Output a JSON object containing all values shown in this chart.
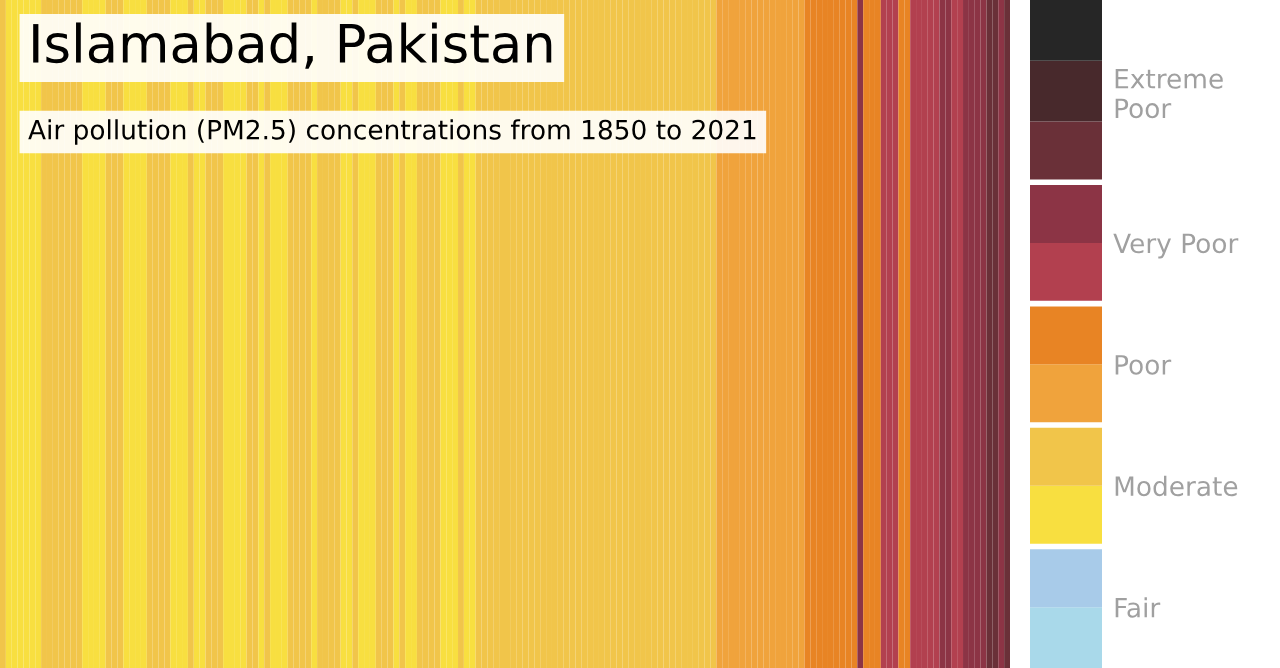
{
  "chart_data": {
    "type": "heatmap",
    "title": "Islamabad, Pakistan",
    "subtitle": "Air pollution (PM2.5) concentrations from 1850 to 2021",
    "categories": [
      null,
      null,
      null,
      null,
      null,
      null,
      null,
      null,
      null,
      null,
      null,
      null,
      null,
      null,
      null,
      null,
      null,
      null,
      null,
      null,
      null,
      null,
      null,
      null,
      null,
      null,
      null,
      null,
      null,
      null,
      null,
      null,
      null,
      null,
      null,
      null,
      null,
      null,
      null,
      null,
      null,
      null,
      null,
      null,
      null,
      null,
      null,
      null,
      null,
      null,
      null,
      null,
      null,
      null,
      null,
      null,
      null,
      null,
      null,
      null,
      null,
      null,
      null,
      null,
      null,
      null,
      null,
      null,
      null,
      null,
      null,
      null,
      null,
      null,
      null,
      null,
      null,
      null,
      null,
      null,
      null,
      null,
      null,
      null,
      null,
      null,
      null,
      null,
      null,
      null,
      null,
      null,
      null,
      null,
      null,
      null,
      null,
      null,
      null,
      null,
      null,
      null,
      null,
      null,
      null,
      null,
      null,
      null,
      null,
      null,
      null,
      null,
      null,
      null,
      null,
      null,
      null,
      null,
      null,
      null,
      null,
      null,
      null,
      null,
      null,
      null,
      null,
      null,
      null,
      null,
      null,
      null,
      null,
      null,
      null,
      null,
      null,
      null,
      null,
      null,
      null,
      null,
      null,
      null,
      null,
      null,
      null,
      null,
      null,
      null,
      null,
      null,
      null,
      null,
      null,
      null,
      null,
      null,
      null,
      null,
      null,
      null,
      null,
      null,
      null,
      null,
      null,
      null,
      null,
      null,
      null,
      null
    ],
    "y_categories": [
      null
    ],
    "cells": [
      [
        4,
        3,
        3,
        3,
        3,
        3,
        3,
        4,
        4,
        4,
        4,
        4,
        4,
        4,
        3,
        3,
        3,
        3,
        4,
        4,
        4,
        3,
        3,
        3,
        3,
        4,
        4,
        4,
        4,
        3,
        3,
        3,
        4,
        3,
        3,
        4,
        4,
        4,
        3,
        3,
        3,
        3,
        4,
        4,
        3,
        4,
        3,
        3,
        3,
        4,
        4,
        4,
        4,
        3,
        4,
        4,
        4,
        4,
        3,
        3,
        4,
        3,
        3,
        3,
        4,
        4,
        4,
        3,
        4,
        3,
        3,
        4,
        4,
        4,
        4,
        3,
        3,
        3,
        4,
        3,
        3,
        4,
        4,
        4,
        4,
        4,
        4,
        4,
        4,
        4,
        4,
        4,
        4,
        4,
        4,
        4,
        4,
        4,
        4,
        4,
        4,
        4,
        4,
        4,
        4,
        4,
        4,
        4,
        4,
        4,
        4,
        4,
        4,
        4,
        4,
        4,
        4,
        4,
        4,
        4,
        4,
        4,
        5,
        5,
        5,
        5,
        5,
        5,
        5,
        5,
        5,
        5,
        5,
        5,
        5,
        5,
        5,
        6,
        6,
        6,
        6,
        6,
        6,
        6,
        6,
        6,
        8,
        6,
        6,
        6,
        7,
        7,
        7,
        6,
        6,
        7,
        7,
        7,
        7,
        7,
        8,
        8,
        7,
        7,
        8,
        8,
        8,
        8,
        9,
        9,
        8,
        9
      ]
    ],
    "colors": [
      "#a9d9ea",
      "#a8cbe9",
      "#f8df40",
      "#f1c54a",
      "#f0a33c",
      "#e88424",
      "#b2404f",
      "#8c3445",
      "#6a3038",
      "#48292c",
      "#262626"
    ],
    "clim": [
      0.5,
      11.5
    ],
    "cticks": [
      {
        "value": 1.5,
        "label": "Fair"
      },
      {
        "value": 3.5,
        "label": "Moderate"
      },
      {
        "value": 5.5,
        "label": "Poor"
      },
      {
        "value": 7.5,
        "label": "Very Poor"
      },
      {
        "value": 10,
        "label": "Extreme\nPoor"
      }
    ]
  }
}
